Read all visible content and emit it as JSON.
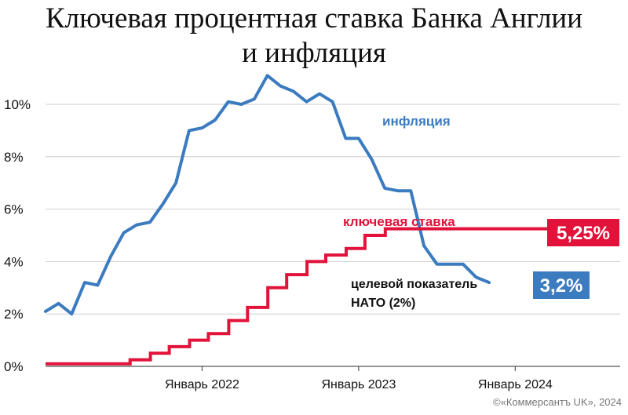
{
  "chart_data": {
    "type": "line",
    "title_line1": "Ключевая процентная ставка Банка Англии",
    "title_line2": "и инфляция",
    "y_ticks": [
      {
        "value": 0,
        "label": "0%"
      },
      {
        "value": 2,
        "label": "2%"
      },
      {
        "value": 4,
        "label": "4%"
      },
      {
        "value": 6,
        "label": "6%"
      },
      {
        "value": 8,
        "label": "8%"
      },
      {
        "value": 10,
        "label": "10%"
      }
    ],
    "x_ticks": [
      {
        "value": 2022.0,
        "label": "Январь 2022"
      },
      {
        "value": 2023.0,
        "label": "Январь 2023"
      },
      {
        "value": 2024.0,
        "label": "Январь 2024"
      }
    ],
    "xlim": [
      2021.0,
      2024.67
    ],
    "ylim": [
      0,
      11.5
    ],
    "grid": true,
    "series": [
      {
        "name": "инфляция",
        "color": "#3b7bbf",
        "end_label": "3,2%",
        "points": [
          [
            2021.0,
            2.1
          ],
          [
            2021.083,
            2.4
          ],
          [
            2021.167,
            2.0
          ],
          [
            2021.25,
            3.2
          ],
          [
            2021.333,
            3.1
          ],
          [
            2021.417,
            4.2
          ],
          [
            2021.5,
            5.1
          ],
          [
            2021.583,
            5.4
          ],
          [
            2021.667,
            5.5
          ],
          [
            2021.75,
            6.2
          ],
          [
            2021.833,
            7.0
          ],
          [
            2021.917,
            9.0
          ],
          [
            2022.0,
            9.1
          ],
          [
            2022.083,
            9.4
          ],
          [
            2022.167,
            10.1
          ],
          [
            2022.25,
            10.0
          ],
          [
            2022.333,
            10.2
          ],
          [
            2022.417,
            11.1
          ],
          [
            2022.5,
            10.7
          ],
          [
            2022.583,
            10.5
          ],
          [
            2022.667,
            10.1
          ],
          [
            2022.75,
            10.4
          ],
          [
            2022.833,
            10.1
          ],
          [
            2022.917,
            8.7
          ],
          [
            2023.0,
            8.7
          ],
          [
            2023.083,
            7.9
          ],
          [
            2023.167,
            6.8
          ],
          [
            2023.25,
            6.7
          ],
          [
            2023.333,
            6.7
          ],
          [
            2023.417,
            4.6
          ],
          [
            2023.5,
            3.9
          ],
          [
            2023.583,
            3.9
          ],
          [
            2023.667,
            3.9
          ],
          [
            2023.75,
            3.4
          ],
          [
            2023.833,
            3.2
          ]
        ]
      },
      {
        "name": "ключевая ставка",
        "color": "#e2123a",
        "end_label": "5,25%",
        "steps": [
          [
            2021.0,
            0.1
          ],
          [
            2021.54,
            0.25
          ],
          [
            2021.67,
            0.5
          ],
          [
            2021.79,
            0.75
          ],
          [
            2021.92,
            1.0
          ],
          [
            2022.04,
            1.25
          ],
          [
            2022.17,
            1.75
          ],
          [
            2022.29,
            2.25
          ],
          [
            2022.42,
            3.0
          ],
          [
            2022.54,
            3.5
          ],
          [
            2022.67,
            4.0
          ],
          [
            2022.79,
            4.25
          ],
          [
            2022.92,
            4.5
          ],
          [
            2023.04,
            5.0
          ],
          [
            2023.17,
            5.25
          ],
          [
            2024.37,
            5.25
          ]
        ]
      }
    ],
    "annotations": [
      {
        "id": "nato-line1",
        "text": "целевой показатель"
      },
      {
        "id": "nato-line2",
        "text": "НАТО (2%)"
      }
    ],
    "credit": "©«Коммерсантъ UK», 2024"
  }
}
